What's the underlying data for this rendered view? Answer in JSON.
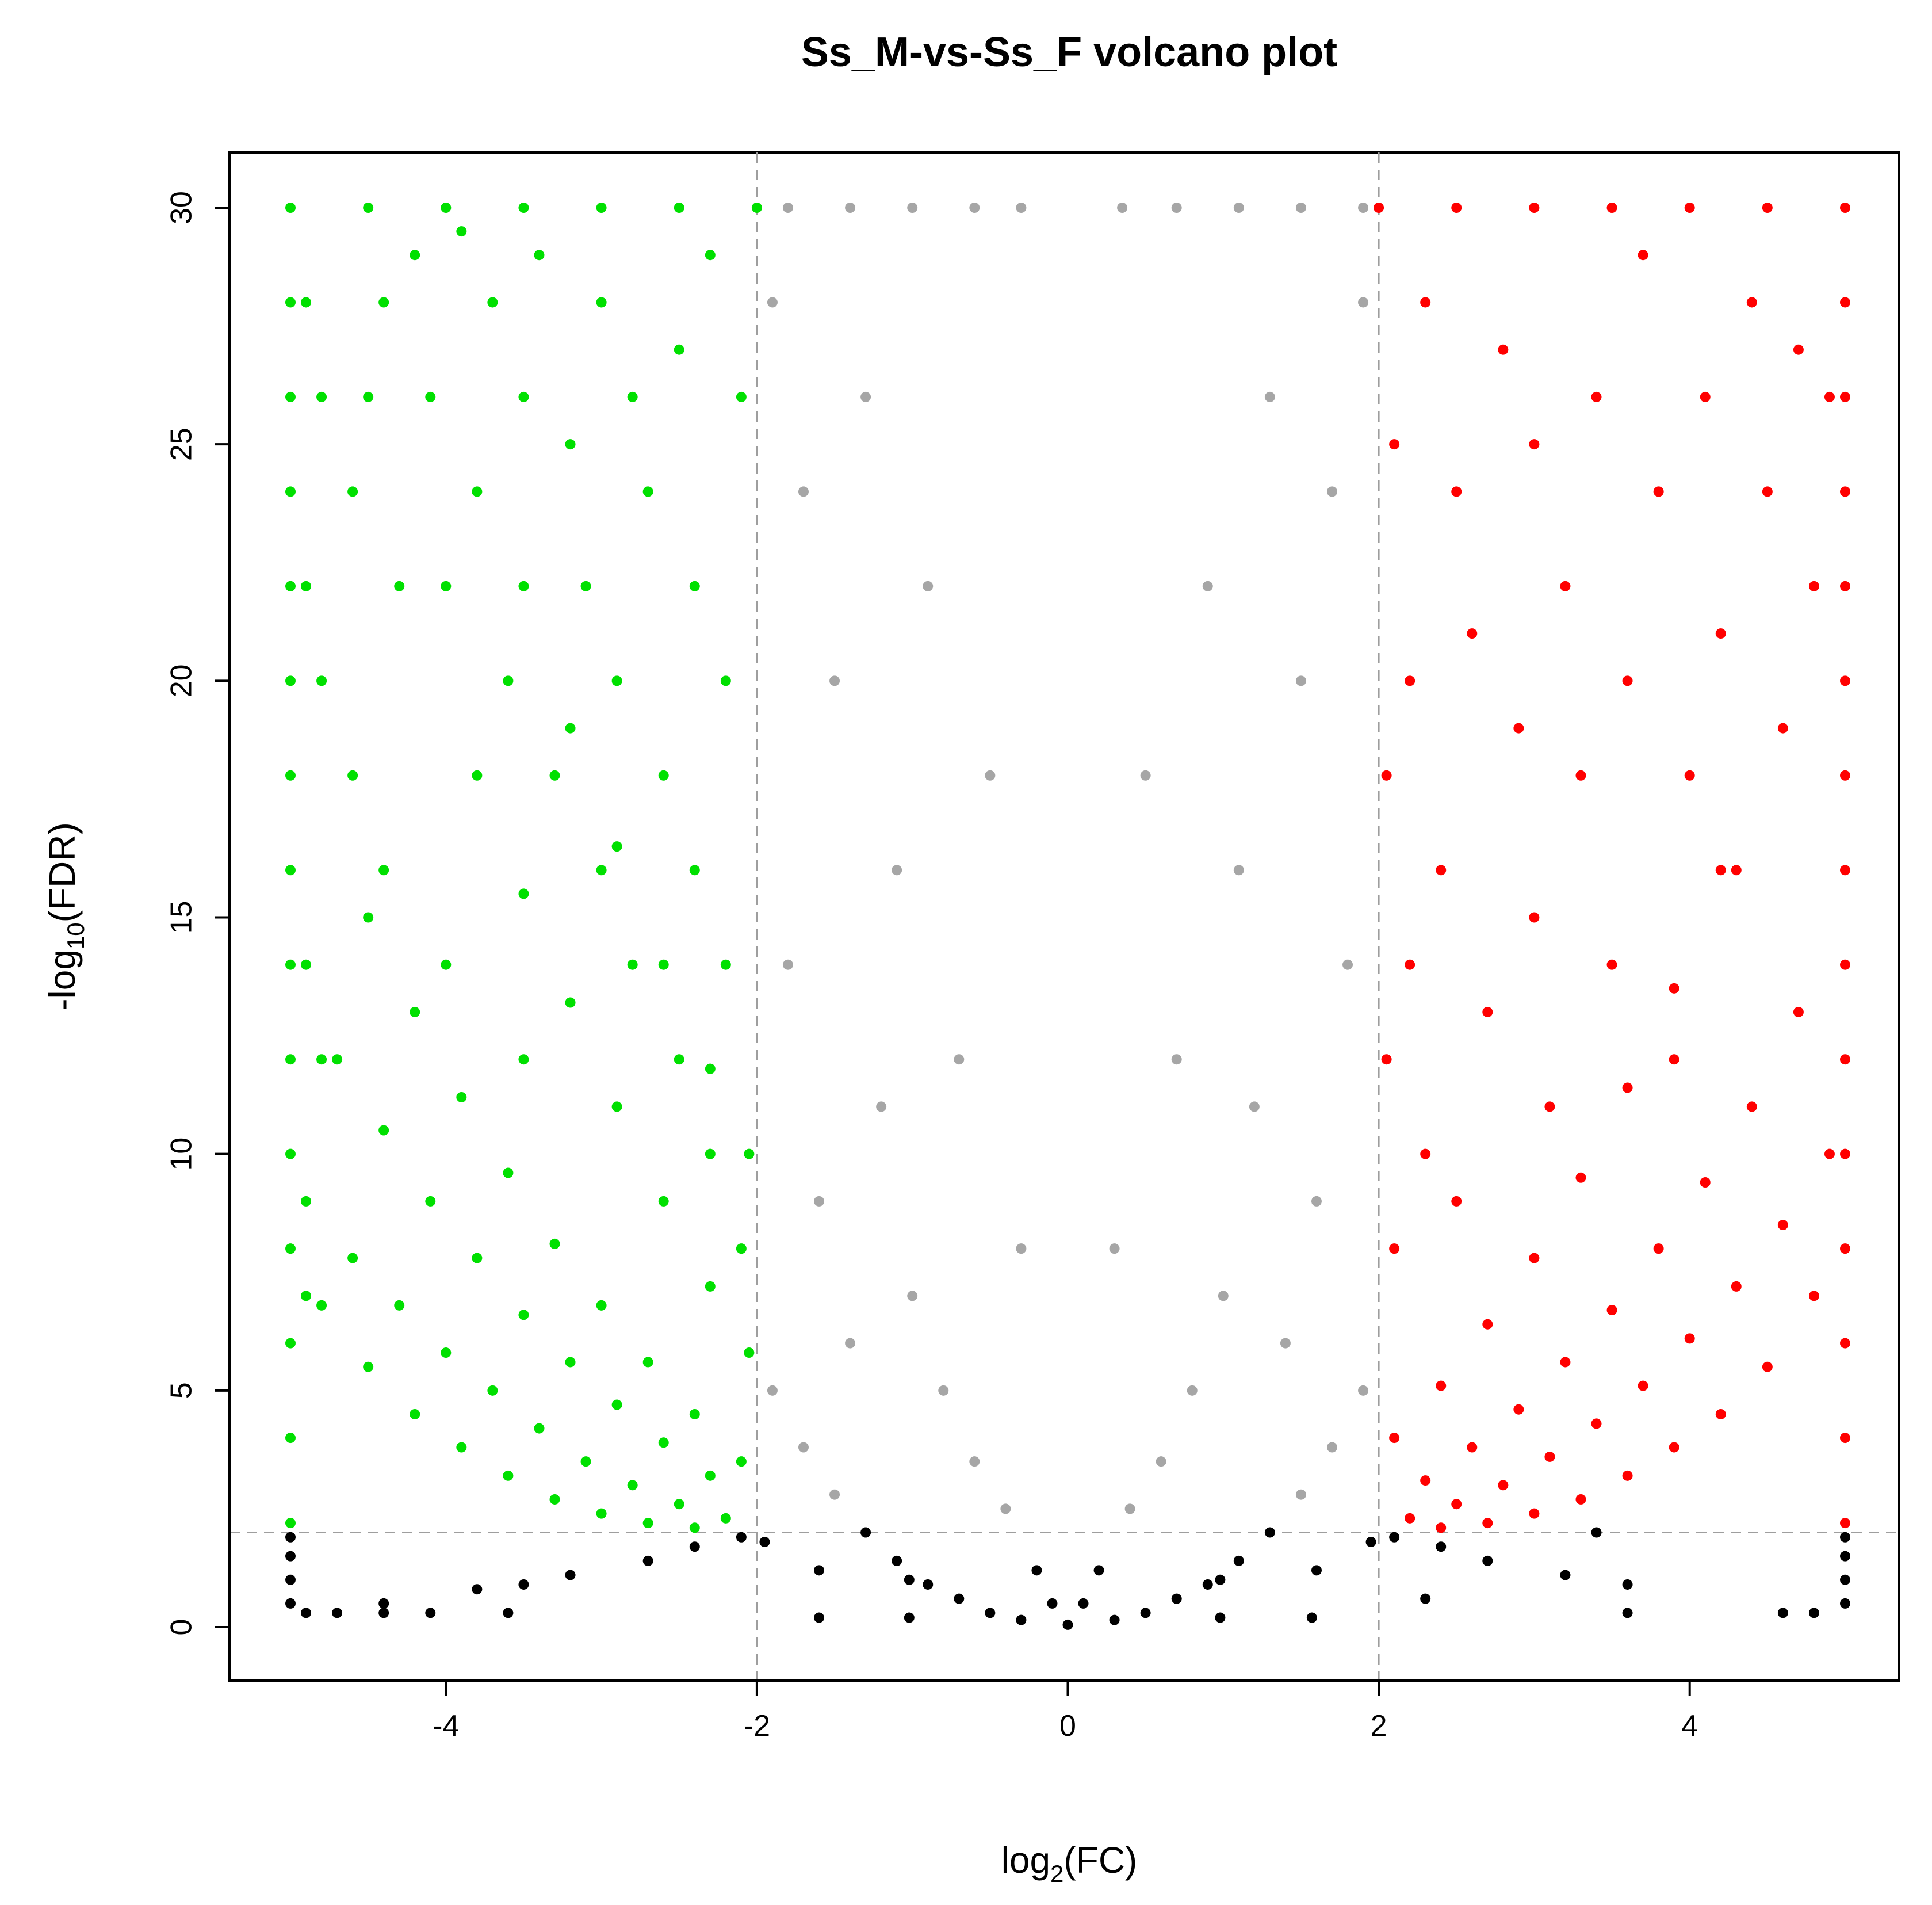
{
  "chart_data": {
    "type": "scatter",
    "title": "Ss_M-vs-Ss_F volcano plot",
    "xlabel": {
      "prefix": "log",
      "subscript": "2",
      "suffix": "(FC)"
    },
    "ylabel": {
      "prefix": "-log",
      "subscript": "10",
      "suffix": "(FDR)"
    },
    "xlim": [
      -5,
      5
    ],
    "ylim": [
      0,
      30
    ],
    "xticks": [
      -4,
      -2,
      0,
      2,
      4
    ],
    "yticks": [
      0,
      5,
      10,
      15,
      20,
      25,
      30
    ],
    "thresholds": {
      "log2fc": [
        -2,
        2
      ],
      "neg_log10_fdr": 2
    },
    "grid": false,
    "legend": "none",
    "colors": {
      "down": "#00e000",
      "up": "#ff0000",
      "nonsignificant": "#000000",
      "threshold_line": "#9e9e9e"
    },
    "series": [
      {
        "group": "down",
        "color": "#00e000",
        "points": [
          [
            -5,
            30
          ],
          [
            -5,
            28
          ],
          [
            -5,
            26
          ],
          [
            -5,
            24
          ],
          [
            -5,
            22
          ],
          [
            -5,
            20
          ],
          [
            -5,
            18
          ],
          [
            -5,
            16
          ],
          [
            -5,
            14
          ],
          [
            -5,
            12
          ],
          [
            -5,
            10
          ],
          [
            -5,
            8
          ],
          [
            -5,
            6
          ],
          [
            -5,
            4
          ],
          [
            -5,
            2.2
          ],
          [
            -4.9,
            28
          ],
          [
            -4.9,
            22
          ],
          [
            -4.9,
            14
          ],
          [
            -4.9,
            7
          ],
          [
            -4.8,
            26
          ],
          [
            -4.8,
            20
          ],
          [
            -4.8,
            12
          ],
          [
            -4.6,
            24
          ],
          [
            -4.6,
            18
          ],
          [
            -4.5,
            26
          ],
          [
            -4.4,
            28
          ],
          [
            -4.4,
            16
          ],
          [
            -4.3,
            22
          ],
          [
            -4.2,
            29
          ],
          [
            -4.1,
            26
          ],
          [
            -4,
            22
          ],
          [
            -4,
            14
          ],
          [
            -3.9,
            29.5
          ],
          [
            -3.8,
            24
          ],
          [
            -3.7,
            28
          ],
          [
            -3.6,
            20
          ],
          [
            -3.5,
            26
          ],
          [
            -3.5,
            12
          ],
          [
            -3.4,
            29
          ],
          [
            -3.3,
            18
          ],
          [
            -3.2,
            25
          ],
          [
            -3.1,
            22
          ],
          [
            -3,
            16
          ],
          [
            -3,
            28
          ],
          [
            -2.9,
            20
          ],
          [
            -2.8,
            14
          ],
          [
            -2.8,
            26
          ],
          [
            -2.7,
            24
          ],
          [
            -2.6,
            18
          ],
          [
            -2.5,
            12
          ],
          [
            -2.5,
            27
          ],
          [
            -2.4,
            16
          ],
          [
            -2.4,
            22
          ],
          [
            -2.3,
            10
          ],
          [
            -2.3,
            29
          ],
          [
            -2.2,
            14
          ],
          [
            -2.2,
            20
          ],
          [
            -2.1,
            8
          ],
          [
            -2.1,
            26
          ],
          [
            -4.8,
            6.8
          ],
          [
            -4.5,
            5.5
          ],
          [
            -4.2,
            4.5
          ],
          [
            -3.9,
            3.8
          ],
          [
            -3.6,
            3.2
          ],
          [
            -3.3,
            2.7
          ],
          [
            -3,
            2.4
          ],
          [
            -2.7,
            2.2
          ],
          [
            -2.4,
            2.1
          ],
          [
            -4.9,
            9
          ],
          [
            -4.6,
            7.8
          ],
          [
            -4.3,
            6.8
          ],
          [
            -4,
            5.8
          ],
          [
            -3.7,
            5
          ],
          [
            -3.4,
            4.2
          ],
          [
            -3.1,
            3.5
          ],
          [
            -2.8,
            3
          ],
          [
            -2.5,
            2.6
          ],
          [
            -2.2,
            2.3
          ],
          [
            -4.7,
            12
          ],
          [
            -4.4,
            10.5
          ],
          [
            -4.1,
            9
          ],
          [
            -3.8,
            7.8
          ],
          [
            -3.5,
            6.6
          ],
          [
            -3.2,
            5.6
          ],
          [
            -2.9,
            4.7
          ],
          [
            -2.6,
            3.9
          ],
          [
            -2.3,
            3.2
          ],
          [
            -4.5,
            15
          ],
          [
            -4.2,
            13
          ],
          [
            -3.9,
            11.2
          ],
          [
            -3.6,
            9.6
          ],
          [
            -3.3,
            8.1
          ],
          [
            -3,
            6.8
          ],
          [
            -2.7,
            5.6
          ],
          [
            -2.4,
            4.5
          ],
          [
            -2.1,
            3.5
          ],
          [
            -3.8,
            18
          ],
          [
            -3.5,
            15.5
          ],
          [
            -3.2,
            13.2
          ],
          [
            -2.9,
            11
          ],
          [
            -2.6,
            9
          ],
          [
            -2.3,
            7.2
          ],
          [
            -2.05,
            5.8
          ],
          [
            -3.5,
            22
          ],
          [
            -3.2,
            19
          ],
          [
            -2.9,
            16.5
          ],
          [
            -2.6,
            14
          ],
          [
            -2.3,
            11.8
          ],
          [
            -2.05,
            10
          ],
          [
            -2,
            30
          ],
          [
            -2.5,
            30
          ],
          [
            -3,
            30
          ],
          [
            -3.5,
            30
          ],
          [
            -4,
            30
          ],
          [
            -4.5,
            30
          ]
        ]
      },
      {
        "group": "up",
        "color": "#ff0000",
        "points": [
          [
            5,
            30
          ],
          [
            5,
            28
          ],
          [
            5,
            26
          ],
          [
            5,
            24
          ],
          [
            5,
            22
          ],
          [
            5,
            20
          ],
          [
            5,
            18
          ],
          [
            5,
            16
          ],
          [
            5,
            14
          ],
          [
            5,
            12
          ],
          [
            5,
            10
          ],
          [
            5,
            8
          ],
          [
            5,
            6
          ],
          [
            5,
            4
          ],
          [
            5,
            2.2
          ],
          [
            4.9,
            26
          ],
          [
            4.8,
            22
          ],
          [
            4.7,
            27
          ],
          [
            4.6,
            19
          ],
          [
            4.5,
            24
          ],
          [
            4.4,
            28
          ],
          [
            4.3,
            16
          ],
          [
            4.2,
            21
          ],
          [
            4.1,
            26
          ],
          [
            4,
            18
          ],
          [
            3.9,
            12
          ],
          [
            3.8,
            24
          ],
          [
            3.7,
            29
          ],
          [
            3.6,
            20
          ],
          [
            3.5,
            14
          ],
          [
            3.4,
            26
          ],
          [
            3.3,
            18
          ],
          [
            3.2,
            22
          ],
          [
            3.1,
            11
          ],
          [
            3,
            25
          ],
          [
            3,
            15
          ],
          [
            2.9,
            19
          ],
          [
            2.8,
            27
          ],
          [
            2.7,
            13
          ],
          [
            2.6,
            21
          ],
          [
            2.5,
            9
          ],
          [
            2.5,
            24
          ],
          [
            2.4,
            16
          ],
          [
            2.3,
            10
          ],
          [
            2.3,
            28
          ],
          [
            2.2,
            14
          ],
          [
            2.2,
            20
          ],
          [
            2.1,
            8
          ],
          [
            2.1,
            25
          ],
          [
            2.05,
            12
          ],
          [
            2.05,
            18
          ],
          [
            4.8,
            7
          ],
          [
            4.5,
            5.5
          ],
          [
            4.2,
            4.5
          ],
          [
            3.9,
            3.8
          ],
          [
            3.6,
            3.2
          ],
          [
            3.3,
            2.7
          ],
          [
            3,
            2.4
          ],
          [
            2.7,
            2.2
          ],
          [
            2.4,
            2.1
          ],
          [
            4.9,
            10
          ],
          [
            4.6,
            8.5
          ],
          [
            4.3,
            7.2
          ],
          [
            4,
            6.1
          ],
          [
            3.7,
            5.1
          ],
          [
            3.4,
            4.3
          ],
          [
            3.1,
            3.6
          ],
          [
            2.8,
            3
          ],
          [
            2.5,
            2.6
          ],
          [
            2.2,
            2.3
          ],
          [
            4.7,
            13
          ],
          [
            4.4,
            11
          ],
          [
            4.1,
            9.4
          ],
          [
            3.8,
            8
          ],
          [
            3.5,
            6.7
          ],
          [
            3.2,
            5.6
          ],
          [
            2.9,
            4.6
          ],
          [
            2.6,
            3.8
          ],
          [
            2.3,
            3.1
          ],
          [
            4.2,
            16
          ],
          [
            3.9,
            13.5
          ],
          [
            3.6,
            11.4
          ],
          [
            3.3,
            9.5
          ],
          [
            3,
            7.8
          ],
          [
            2.7,
            6.4
          ],
          [
            2.4,
            5.1
          ],
          [
            2.1,
            4
          ],
          [
            2,
            30
          ],
          [
            2.5,
            30
          ],
          [
            3,
            30
          ],
          [
            3.5,
            30
          ],
          [
            4,
            30
          ],
          [
            4.5,
            30
          ]
        ]
      },
      {
        "group": "nonsignificant",
        "color": "#000000",
        "points": [
          [
            -1.9,
            28
          ],
          [
            -1.7,
            24
          ],
          [
            -1.5,
            20
          ],
          [
            -1.3,
            26
          ],
          [
            -1.1,
            16
          ],
          [
            -0.9,
            22
          ],
          [
            -0.7,
            12
          ],
          [
            -0.5,
            18
          ],
          [
            -0.3,
            8
          ],
          [
            -1.8,
            14
          ],
          [
            -1.6,
            9
          ],
          [
            -1.4,
            6
          ],
          [
            -1.2,
            11
          ],
          [
            -1,
            7
          ],
          [
            -0.8,
            5
          ],
          [
            -0.6,
            3.5
          ],
          [
            -0.4,
            2.5
          ],
          [
            -0.2,
            1.2
          ],
          [
            -0.1,
            0.5
          ],
          [
            -1.9,
            5
          ],
          [
            -1.7,
            3.8
          ],
          [
            -1.5,
            2.8
          ],
          [
            -1.3,
            2
          ],
          [
            -1.1,
            1.4
          ],
          [
            -0.9,
            0.9
          ],
          [
            -0.7,
            0.6
          ],
          [
            -0.5,
            0.3
          ],
          [
            -0.3,
            0.15
          ],
          [
            -1.95,
            1.8
          ],
          [
            -1.6,
            1.2
          ],
          [
            -1.02,
            0.2
          ],
          [
            -1.02,
            1
          ],
          [
            -1.6,
            0.2
          ],
          [
            -2.7,
            1.4
          ],
          [
            -3.2,
            1.1
          ],
          [
            -3.8,
            0.8
          ],
          [
            -4.4,
            0.5
          ],
          [
            -2.4,
            1.7
          ],
          [
            -3.5,
            0.9
          ],
          [
            -2.1,
            1.9
          ],
          [
            -4.9,
            0.3
          ],
          [
            -4.7,
            0.3
          ],
          [
            -4.4,
            0.3
          ],
          [
            -4.1,
            0.3
          ],
          [
            -3.6,
            0.3
          ],
          [
            -5,
            0.5
          ],
          [
            -5,
            1
          ],
          [
            -5,
            1.5
          ],
          [
            -5,
            1.9
          ],
          [
            1.9,
            28
          ],
          [
            1.7,
            24
          ],
          [
            1.5,
            20
          ],
          [
            1.3,
            26
          ],
          [
            1.1,
            16
          ],
          [
            0.9,
            22
          ],
          [
            0.7,
            12
          ],
          [
            0.5,
            18
          ],
          [
            0.3,
            8
          ],
          [
            1.8,
            14
          ],
          [
            1.6,
            9
          ],
          [
            1.4,
            6
          ],
          [
            1.2,
            11
          ],
          [
            1,
            7
          ],
          [
            0.8,
            5
          ],
          [
            0.6,
            3.5
          ],
          [
            0.4,
            2.5
          ],
          [
            0.2,
            1.2
          ],
          [
            0.1,
            0.5
          ],
          [
            1.9,
            5
          ],
          [
            1.7,
            3.8
          ],
          [
            1.5,
            2.8
          ],
          [
            1.3,
            2
          ],
          [
            1.1,
            1.4
          ],
          [
            0.9,
            0.9
          ],
          [
            0.7,
            0.6
          ],
          [
            0.5,
            0.3
          ],
          [
            0.3,
            0.15
          ],
          [
            1.95,
            1.8
          ],
          [
            1.6,
            1.2
          ],
          [
            0.98,
            0.2
          ],
          [
            0.98,
            1
          ],
          [
            1.57,
            0.2
          ],
          [
            2.7,
            1.4
          ],
          [
            3.2,
            1.1
          ],
          [
            3.6,
            0.9
          ],
          [
            2.4,
            1.7
          ],
          [
            2.3,
            0.6
          ],
          [
            2.1,
            1.9
          ],
          [
            3.4,
            2
          ],
          [
            4.6,
            0.3
          ],
          [
            4.8,
            0.3
          ],
          [
            3.6,
            0.3
          ],
          [
            5,
            0.5
          ],
          [
            5,
            1
          ],
          [
            5,
            1.5
          ],
          [
            5,
            1.9
          ],
          [
            -1.8,
            30
          ],
          [
            -1.4,
            30
          ],
          [
            -1,
            30
          ],
          [
            -0.6,
            30
          ],
          [
            -0.3,
            30
          ],
          [
            0.35,
            30
          ],
          [
            0.7,
            30
          ],
          [
            1.1,
            30
          ],
          [
            1.5,
            30
          ],
          [
            1.9,
            30
          ],
          [
            0,
            0.05
          ]
        ]
      }
    ]
  }
}
